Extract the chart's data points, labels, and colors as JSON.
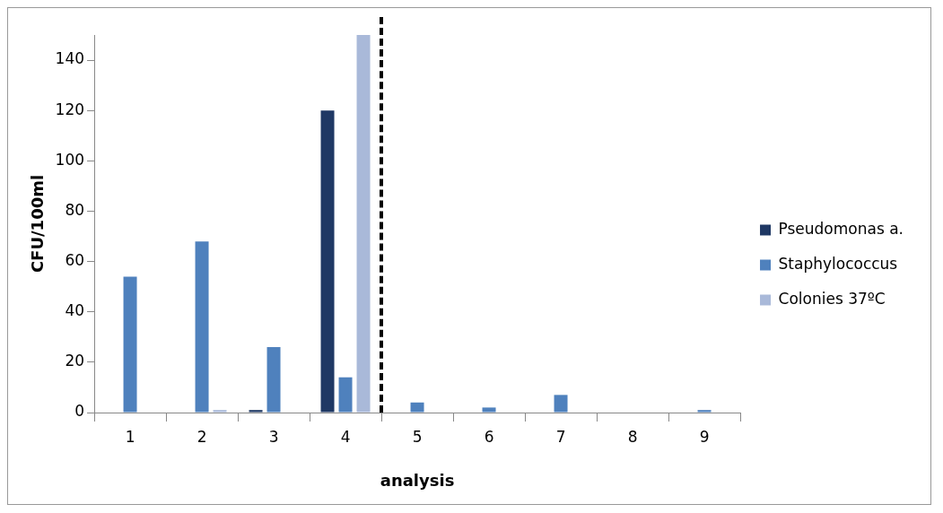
{
  "chart_data": {
    "type": "bar",
    "xlabel": "analysis",
    "ylabel": "CFU/100ml",
    "categories": [
      "1",
      "2",
      "3",
      "4",
      "5",
      "6",
      "7",
      "8",
      "9"
    ],
    "series": [
      {
        "name": "Pseudomonas a.",
        "color": "#1f3864",
        "values": [
          0,
          0,
          1,
          120,
          0,
          0,
          0,
          0,
          0
        ]
      },
      {
        "name": "Staphylococcus",
        "color": "#4f81bd",
        "values": [
          54,
          68,
          26,
          14,
          4,
          2,
          7,
          0,
          1
        ]
      },
      {
        "name": "Colonies 37ºC",
        "color": "#a9b9d9",
        "values": [
          0,
          1,
          0,
          150,
          0,
          0,
          0,
          0,
          0
        ]
      }
    ],
    "ylim": [
      0,
      150
    ],
    "yticks": [
      0,
      20,
      40,
      60,
      80,
      100,
      120,
      140
    ],
    "grid": false,
    "legend": "right"
  }
}
